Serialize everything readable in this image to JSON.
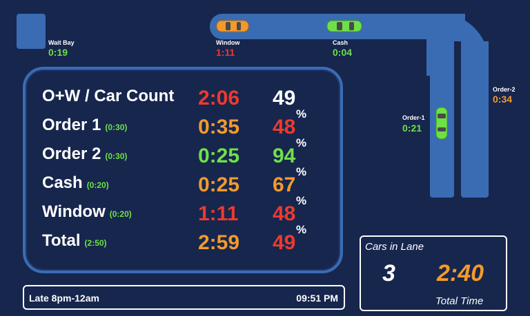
{
  "zones": {
    "wait_bay": {
      "label": "Wait Bay",
      "time": "0:19"
    },
    "window": {
      "label": "Window",
      "time": "1:11"
    },
    "cash": {
      "label": "Cash",
      "time": "0:04"
    },
    "order1": {
      "label": "Order-1",
      "time": "0:21"
    },
    "order2": {
      "label": "Order-2",
      "time": "0:34"
    }
  },
  "stats": {
    "rows": [
      {
        "label": "O+W / Car Count",
        "target": "",
        "time": "2:06",
        "value": "49",
        "pct_sign": ""
      },
      {
        "label": "Order 1",
        "target": "(0:30)",
        "time": "0:35",
        "value": "48",
        "pct_sign": "%"
      },
      {
        "label": "Order 2",
        "target": "(0:30)",
        "time": "0:25",
        "value": "94",
        "pct_sign": "%"
      },
      {
        "label": "Cash",
        "target": "(0:20)",
        "time": "0:25",
        "value": "67",
        "pct_sign": "%"
      },
      {
        "label": "Window",
        "target": "(0:20)",
        "time": "1:11",
        "value": "48",
        "pct_sign": "%"
      },
      {
        "label": "Total",
        "target": "(2:50)",
        "time": "2:59",
        "value": "49",
        "pct_sign": "%"
      }
    ]
  },
  "footer": {
    "daypart": "Late 8pm-12am",
    "clock": "09:51 PM"
  },
  "cars_in_lane": {
    "title": "Cars in Lane",
    "count": "3",
    "total_time": "2:40",
    "total_label": "Total Time"
  },
  "colors": {
    "lane": "#3a6cb4",
    "green": "#6fe04a",
    "orange": "#f39a2c",
    "red": "#ec3a2e",
    "background": "#17264d"
  }
}
